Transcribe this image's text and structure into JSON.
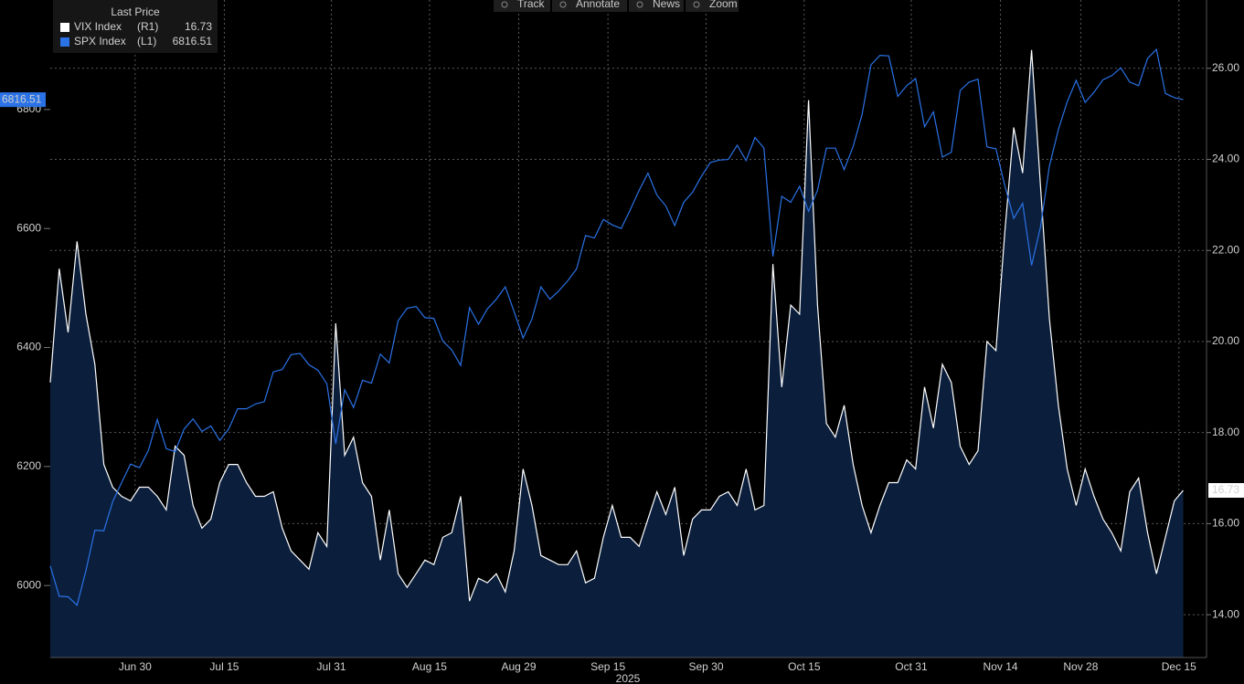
{
  "chart_data": {
    "type": "line",
    "toolbar": [
      "Track",
      "Annotate",
      "News",
      "Zoom"
    ],
    "legend_title": "Last Price",
    "x_year": "2025",
    "categories": [
      null,
      null,
      null,
      null,
      null,
      null,
      null,
      null,
      null,
      "Jun 30",
      null,
      null,
      null,
      null,
      null,
      null,
      null,
      null,
      null,
      "Jul 15",
      null,
      null,
      null,
      null,
      null,
      null,
      null,
      null,
      null,
      null,
      null,
      "Jul 31",
      null,
      null,
      null,
      null,
      null,
      null,
      null,
      null,
      null,
      null,
      "Aug 15",
      null,
      null,
      null,
      null,
      null,
      null,
      null,
      null,
      null,
      "Aug 29",
      null,
      null,
      null,
      null,
      null,
      null,
      null,
      null,
      null,
      "Sep 15",
      null,
      null,
      null,
      null,
      null,
      null,
      null,
      null,
      null,
      null,
      "Sep 30",
      null,
      null,
      null,
      null,
      null,
      null,
      null,
      null,
      null,
      null,
      "Oct 15",
      null,
      null,
      null,
      null,
      null,
      null,
      null,
      null,
      null,
      null,
      null,
      "Oct 31",
      null,
      null,
      null,
      null,
      null,
      null,
      null,
      null,
      null,
      "Nov 14",
      null,
      null,
      null,
      null,
      null,
      null,
      null,
      null,
      "Nov 28",
      null,
      null,
      null,
      null,
      null,
      null,
      null,
      null,
      null,
      null,
      "Dec 15",
      null
    ],
    "ylim": [
      5879,
      6984
    ],
    "yticks": [
      6000,
      6200,
      6400,
      6600,
      6800
    ],
    "y2lim": [
      13.06,
      27.5
    ],
    "y2ticks": [
      {
        "value": 14,
        "label": "14.00"
      },
      {
        "value": 16,
        "label": "16.00"
      },
      {
        "value": 18,
        "label": "18.00"
      },
      {
        "value": 20,
        "label": "20.00"
      },
      {
        "value": 22,
        "label": "22.00"
      },
      {
        "value": 24,
        "label": "24.00"
      },
      {
        "value": 26,
        "label": "26.00"
      }
    ],
    "grid": "y2",
    "series": [
      {
        "name": "VIX Index",
        "axis_label": "(R1)",
        "axis": "y2",
        "style": "area",
        "color": "#ffffff",
        "fill": "#0b1f3d",
        "values": [
          19.1,
          21.6,
          20.2,
          22.2,
          20.6,
          19.5,
          17.3,
          16.8,
          16.6,
          16.5,
          16.8,
          16.8,
          16.6,
          16.3,
          17.7,
          17.5,
          16.4,
          15.9,
          16.1,
          16.9,
          17.3,
          17.3,
          16.9,
          16.6,
          16.6,
          16.7,
          15.9,
          15.4,
          15.2,
          15.0,
          15.8,
          15.5,
          20.4,
          17.5,
          17.9,
          16.9,
          16.6,
          15.2,
          16.3,
          14.9,
          14.6,
          14.9,
          15.2,
          15.1,
          15.7,
          15.8,
          16.6,
          14.3,
          14.8,
          14.7,
          14.9,
          14.5,
          15.4,
          17.2,
          16.4,
          15.3,
          15.2,
          15.1,
          15.1,
          15.4,
          14.7,
          14.8,
          15.7,
          16.4,
          15.7,
          15.7,
          15.5,
          16.1,
          16.7,
          16.2,
          16.8,
          15.3,
          16.1,
          16.3,
          16.3,
          16.6,
          16.7,
          16.4,
          17.2,
          16.3,
          16.4,
          21.7,
          19.0,
          20.8,
          20.6,
          25.3,
          20.8,
          18.2,
          17.9,
          18.6,
          17.3,
          16.4,
          15.8,
          16.4,
          16.9,
          16.9,
          17.4,
          17.2,
          19.0,
          18.1,
          19.5,
          19.1,
          17.7,
          17.3,
          17.6,
          20.0,
          19.8,
          22.4,
          24.7,
          23.7,
          26.4,
          23.4,
          20.5,
          18.6,
          17.2,
          16.4,
          17.2,
          16.6,
          16.1,
          15.8,
          15.4,
          16.7,
          17.0,
          15.8,
          14.9,
          15.7,
          16.5,
          16.73
        ]
      },
      {
        "name": "SPX Index",
        "axis_label": "(L1)",
        "axis": "y",
        "style": "line",
        "color": "#2a72e6",
        "values": [
          6033,
          5982,
          5981,
          5967,
          6025,
          6093,
          6092,
          6141,
          6173,
          6204,
          6198,
          6227,
          6279,
          6230,
          6225,
          6263,
          6280,
          6259,
          6268,
          6244,
          6263,
          6297,
          6297,
          6305,
          6309,
          6359,
          6363,
          6388,
          6390,
          6371,
          6362,
          6339,
          6238,
          6329,
          6299,
          6345,
          6340,
          6389,
          6374,
          6445,
          6466,
          6469,
          6450,
          6449,
          6411,
          6396,
          6370,
          6467,
          6439,
          6465,
          6481,
          6502,
          6460,
          6416,
          6448,
          6502,
          6481,
          6495,
          6512,
          6532,
          6588,
          6584,
          6615,
          6606,
          6600,
          6631,
          6664,
          6693,
          6656,
          6638,
          6605,
          6644,
          6661,
          6688,
          6711,
          6715,
          6716,
          6740,
          6714,
          6753,
          6735,
          6553,
          6654,
          6644,
          6671,
          6629,
          6664,
          6735,
          6735,
          6699,
          6738,
          6792,
          6875,
          6891,
          6890,
          6822,
          6840,
          6852,
          6771,
          6796,
          6720,
          6728,
          6832,
          6846,
          6851,
          6737,
          6734,
          6672,
          6617,
          6642,
          6538,
          6603,
          6705,
          6766,
          6813,
          6849,
          6812,
          6829,
          6850,
          6857,
          6870,
          6846,
          6840,
          6886,
          6901,
          6827,
          6820,
          6816.51
        ]
      }
    ]
  }
}
